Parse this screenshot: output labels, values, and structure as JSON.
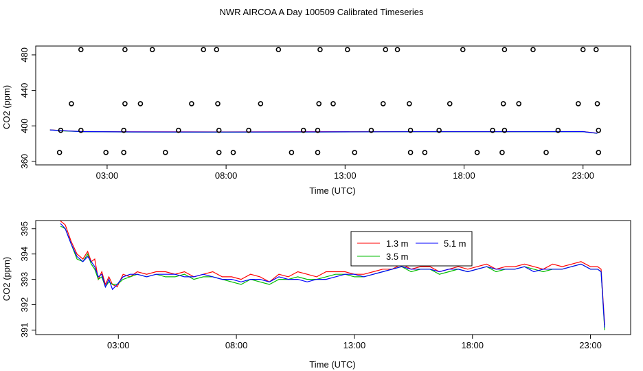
{
  "figure_title": "NWR AIRCOA A  Day 100509  Calibrated Timeseries",
  "chart_data": [
    {
      "type": "scatter",
      "xlabel": "Time (UTC)",
      "ylabel": "CO2 (ppm)",
      "x_ticks": [
        {
          "value": 3,
          "label": "03:00"
        },
        {
          "value": 8,
          "label": "08:00"
        },
        {
          "value": 13,
          "label": "13:00"
        },
        {
          "value": 18,
          "label": "18:00"
        },
        {
          "value": 23,
          "label": "23:00"
        }
      ],
      "y_ticks": [
        {
          "value": 360,
          "label": "360"
        },
        {
          "value": 400,
          "label": "400"
        },
        {
          "value": 440,
          "label": "440"
        },
        {
          "value": 480,
          "label": "480"
        }
      ],
      "xlim": [
        0,
        25
      ],
      "ylim": [
        356,
        490
      ],
      "legend": "none",
      "grid": false,
      "points": {
        "name": "calibration standards",
        "x": [
          1.9,
          3.75,
          4.9,
          7.05,
          7.6,
          10.2,
          11.95,
          13.1,
          14.7,
          15.2,
          17.95,
          19.7,
          20.9,
          23.0,
          23.55,
          1.5,
          3.75,
          4.4,
          6.55,
          7.65,
          9.45,
          11.9,
          12.5,
          14.6,
          15.7,
          17.4,
          19.65,
          20.3,
          22.8,
          23.6,
          1.0,
          2.95,
          3.7,
          5.45,
          7.7,
          8.3,
          10.75,
          11.85,
          13.4,
          15.75,
          16.35,
          18.55,
          19.6,
          21.45,
          23.65,
          1.05,
          1.9,
          3.7,
          6.0,
          7.7,
          8.95,
          11.25,
          11.85,
          14.1,
          15.75,
          16.95,
          19.2,
          19.7,
          21.95,
          23.65
        ],
        "y": [
          486,
          486,
          486,
          486,
          486,
          486,
          486,
          486,
          486,
          486,
          486,
          486,
          486,
          486,
          486,
          425,
          425,
          425,
          425,
          425,
          425,
          425,
          425,
          425,
          425,
          425,
          425,
          425,
          425,
          425,
          370,
          370,
          370,
          370,
          370,
          370,
          370,
          370,
          370,
          370,
          370,
          370,
          370,
          370,
          370,
          395,
          395,
          395,
          395,
          395,
          395,
          395,
          395,
          395,
          395,
          395,
          395,
          395,
          395,
          395
        ]
      },
      "series": [
        {
          "color": "#ff0000",
          "x": [
            0.6,
            1.2,
            2.0,
            4.0,
            8.0,
            12.0,
            16.0,
            20.0,
            23.0,
            23.6
          ],
          "y": [
            395.5,
            394.5,
            393.6,
            393.3,
            393.2,
            393.4,
            393.5,
            393.5,
            393.6,
            391.8
          ]
        },
        {
          "color": "#00cc00",
          "x": [
            0.6,
            1.2,
            2.0,
            4.0,
            8.0,
            12.0,
            16.0,
            20.0,
            23.0,
            23.6
          ],
          "y": [
            395.4,
            394.3,
            393.4,
            393.1,
            392.9,
            393.1,
            393.3,
            393.3,
            393.5,
            391.5
          ]
        },
        {
          "color": "#0000ff",
          "x": [
            0.6,
            1.2,
            2.0,
            4.0,
            8.0,
            12.0,
            16.0,
            20.0,
            23.0,
            23.6
          ],
          "y": [
            395.4,
            394.4,
            393.5,
            393.2,
            393.0,
            393.2,
            393.4,
            393.4,
            393.5,
            391.6
          ]
        }
      ]
    },
    {
      "type": "line",
      "xlabel": "Time (UTC)",
      "ylabel": "CO2 (ppm)",
      "x_ticks": [
        {
          "value": 3,
          "label": "03:00"
        },
        {
          "value": 8,
          "label": "08:00"
        },
        {
          "value": 13,
          "label": "13:00"
        },
        {
          "value": 18,
          "label": "18:00"
        },
        {
          "value": 23,
          "label": "23:00"
        }
      ],
      "y_ticks": [
        {
          "value": 391,
          "label": "391"
        },
        {
          "value": 392,
          "label": "392"
        },
        {
          "value": 393,
          "label": "393"
        },
        {
          "value": 394,
          "label": "394"
        },
        {
          "value": 395,
          "label": "395"
        }
      ],
      "xlim": [
        -0.5,
        24.7
      ],
      "ylim": [
        390.82,
        395.32
      ],
      "legend": "top-center",
      "grid": false,
      "series": [
        {
          "name": "1.3 m",
          "color": "#ff0000",
          "x": [
            0.55,
            0.75,
            1.0,
            1.25,
            1.5,
            1.7,
            1.85,
            2.0,
            2.15,
            2.3,
            2.45,
            2.6,
            2.75,
            2.95,
            3.2,
            3.5,
            3.8,
            4.2,
            4.6,
            5.0,
            5.4,
            5.8,
            6.2,
            6.6,
            7.0,
            7.4,
            7.8,
            8.2,
            8.6,
            9.0,
            9.4,
            9.8,
            10.2,
            10.6,
            11.0,
            11.4,
            11.8,
            12.2,
            12.6,
            13.0,
            13.4,
            13.8,
            14.2,
            14.6,
            15.0,
            15.4,
            15.8,
            16.2,
            16.6,
            17.0,
            17.4,
            17.8,
            18.2,
            18.6,
            19.0,
            19.4,
            19.8,
            20.2,
            20.6,
            21.0,
            21.4,
            21.8,
            22.2,
            22.6,
            23.0,
            23.3,
            23.45,
            23.6
          ],
          "y": [
            395.3,
            395.15,
            394.5,
            394.0,
            393.8,
            394.1,
            393.7,
            393.8,
            393.0,
            393.3,
            392.8,
            393.1,
            392.8,
            392.7,
            393.2,
            393.1,
            393.3,
            393.2,
            393.3,
            393.3,
            393.2,
            393.3,
            393.1,
            393.2,
            393.3,
            393.1,
            393.1,
            393.0,
            393.2,
            393.1,
            392.9,
            393.2,
            393.1,
            393.3,
            393.2,
            393.1,
            393.3,
            393.3,
            393.3,
            393.2,
            393.2,
            393.3,
            393.4,
            393.4,
            393.6,
            393.4,
            393.5,
            393.5,
            393.3,
            393.4,
            393.5,
            393.4,
            393.5,
            393.6,
            393.4,
            393.5,
            393.5,
            393.6,
            393.5,
            393.4,
            393.6,
            393.5,
            393.6,
            393.7,
            393.5,
            393.5,
            393.4,
            391.2
          ]
        },
        {
          "name": "3.5 m",
          "color": "#00bb00",
          "x": [
            0.55,
            0.75,
            1.0,
            1.25,
            1.5,
            1.7,
            1.85,
            2.0,
            2.15,
            2.3,
            2.45,
            2.6,
            2.75,
            2.95,
            3.2,
            3.5,
            3.8,
            4.2,
            4.6,
            5.0,
            5.4,
            5.8,
            6.2,
            6.6,
            7.0,
            7.4,
            7.8,
            8.2,
            8.6,
            9.0,
            9.4,
            9.8,
            10.2,
            10.6,
            11.0,
            11.4,
            11.8,
            12.2,
            12.6,
            13.0,
            13.4,
            13.8,
            14.2,
            14.6,
            15.0,
            15.4,
            15.8,
            16.2,
            16.6,
            17.0,
            17.4,
            17.8,
            18.2,
            18.6,
            19.0,
            19.4,
            19.8,
            20.2,
            20.6,
            21.0,
            21.4,
            21.8,
            22.2,
            22.6,
            23.0,
            23.3,
            23.45,
            23.6
          ],
          "y": [
            395.1,
            395.0,
            394.4,
            393.8,
            393.7,
            394.0,
            393.6,
            393.4,
            393.0,
            393.1,
            392.7,
            392.9,
            392.8,
            392.8,
            393.0,
            393.1,
            393.2,
            393.1,
            393.2,
            393.1,
            393.1,
            393.2,
            393.0,
            393.1,
            393.1,
            393.0,
            392.9,
            392.8,
            393.0,
            392.9,
            392.8,
            393.0,
            393.0,
            393.1,
            393.0,
            393.0,
            393.1,
            393.2,
            393.2,
            393.1,
            393.1,
            393.2,
            393.3,
            393.4,
            393.5,
            393.3,
            393.4,
            393.4,
            393.2,
            393.3,
            393.4,
            393.3,
            393.4,
            393.5,
            393.3,
            393.4,
            393.4,
            393.5,
            393.4,
            393.3,
            393.4,
            393.4,
            393.5,
            393.6,
            393.4,
            393.4,
            393.3,
            391.0
          ]
        },
        {
          "name": "5.1 m",
          "color": "#0000ff",
          "x": [
            0.55,
            0.75,
            1.0,
            1.25,
            1.5,
            1.7,
            1.85,
            2.0,
            2.15,
            2.3,
            2.45,
            2.6,
            2.75,
            2.95,
            3.2,
            3.5,
            3.8,
            4.2,
            4.6,
            5.0,
            5.4,
            5.8,
            6.2,
            6.6,
            7.0,
            7.4,
            7.8,
            8.2,
            8.6,
            9.0,
            9.4,
            9.8,
            10.2,
            10.6,
            11.0,
            11.4,
            11.8,
            12.2,
            12.6,
            13.0,
            13.4,
            13.8,
            14.2,
            14.6,
            15.0,
            15.4,
            15.8,
            16.2,
            16.6,
            17.0,
            17.4,
            17.8,
            18.2,
            18.6,
            19.0,
            19.4,
            19.8,
            20.2,
            20.6,
            21.0,
            21.4,
            21.8,
            22.2,
            22.6,
            23.0,
            23.3,
            23.45,
            23.6
          ],
          "y": [
            395.2,
            395.0,
            394.4,
            393.9,
            393.7,
            393.9,
            393.7,
            393.5,
            393.1,
            393.2,
            392.7,
            393.0,
            392.6,
            392.8,
            393.1,
            393.2,
            393.2,
            393.1,
            393.2,
            393.2,
            393.2,
            393.1,
            393.1,
            393.2,
            393.1,
            393.0,
            393.0,
            392.9,
            393.0,
            393.0,
            392.9,
            393.1,
            393.0,
            393.0,
            392.9,
            393.0,
            393.0,
            393.1,
            393.2,
            393.2,
            393.1,
            393.2,
            393.3,
            393.4,
            393.5,
            393.4,
            393.4,
            393.4,
            393.3,
            393.4,
            393.4,
            393.3,
            393.4,
            393.5,
            393.4,
            393.4,
            393.4,
            393.5,
            393.3,
            393.4,
            393.4,
            393.4,
            393.5,
            393.6,
            393.4,
            393.4,
            393.3,
            391.1
          ]
        }
      ]
    }
  ]
}
